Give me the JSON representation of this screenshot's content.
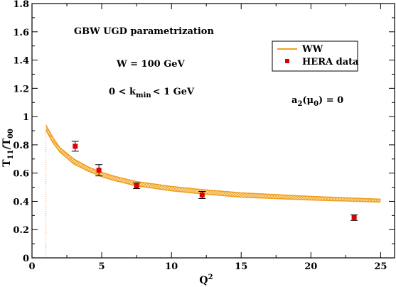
{
  "chart_data": {
    "type": "line",
    "xlabel_main": "Q",
    "xlabel_sup": "2",
    "ylabel_main": "T",
    "ylabel_sub1": "11",
    "ylabel_mid": "/T",
    "ylabel_sub2": "00",
    "xlim": [
      0,
      26
    ],
    "ylim": [
      0,
      1.8
    ],
    "xticks": [
      0,
      5,
      10,
      15,
      20,
      25
    ],
    "yticks": [
      0,
      0.2,
      0.4,
      0.6,
      0.8,
      1.0,
      1.2,
      1.4,
      1.6,
      1.8
    ],
    "xtick_labels": [
      "0",
      "5",
      "10",
      "15",
      "20",
      "25"
    ],
    "ytick_labels": [
      "0",
      "0.2",
      "0.4",
      "0.6",
      "0.8",
      "1",
      "1.2",
      "1.4",
      "1.6",
      "1.8"
    ],
    "grid": false,
    "legend_position": "top-right",
    "colors": {
      "band": "#f0a020",
      "band_fill": "#f7d38a",
      "data": "#dd0000",
      "errorbar": "#000000",
      "vline": "#f0a020"
    },
    "series": [
      {
        "name": "WW",
        "kind": "band",
        "x": [
          1.0,
          1.5,
          2.0,
          3.0,
          4.0,
          5.0,
          6.0,
          7.5,
          10.0,
          12.0,
          15.0,
          20.0,
          25.0
        ],
        "upper": [
          0.94,
          0.85,
          0.78,
          0.7,
          0.645,
          0.605,
          0.575,
          0.54,
          0.505,
          0.485,
          0.46,
          0.435,
          0.415
        ],
        "lower": [
          0.905,
          0.815,
          0.75,
          0.665,
          0.615,
          0.575,
          0.545,
          0.51,
          0.475,
          0.455,
          0.43,
          0.41,
          0.395
        ]
      },
      {
        "name": "HERA data",
        "kind": "points",
        "x": [
          3.1,
          4.8,
          7.5,
          12.2,
          23.1
        ],
        "y": [
          0.79,
          0.62,
          0.51,
          0.445,
          0.285
        ],
        "err": [
          0.035,
          0.04,
          0.02,
          0.025,
          0.02
        ]
      }
    ],
    "vline_x": 1.0,
    "annotations": {
      "title": "GBW UGD parametrization",
      "w_label": "W = 100 GeV",
      "kmin_prefix": "0 < k",
      "kmin_sub": "min",
      "kmin_suffix": "< 1 GeV",
      "a2_prefix": "a",
      "a2_sub1": "2",
      "a2_mid": "(μ",
      "a2_sub2": "0",
      "a2_suffix": ") = 0"
    }
  }
}
